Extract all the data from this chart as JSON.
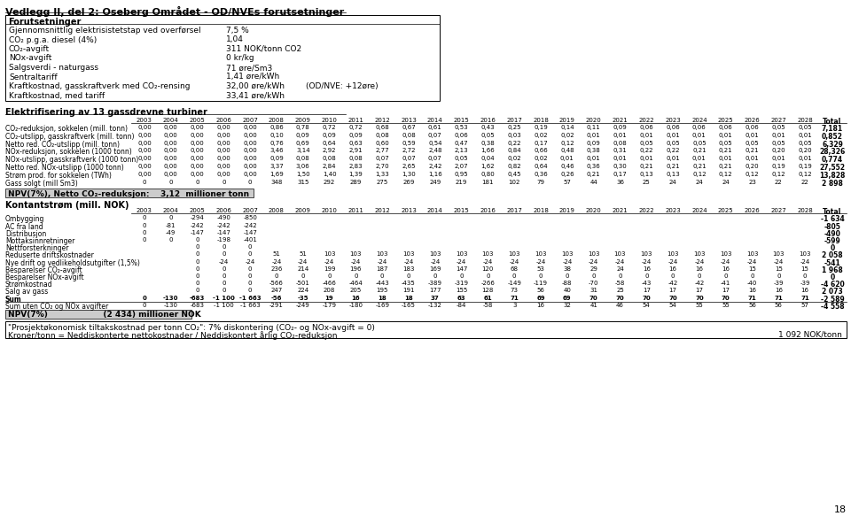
{
  "title": "Vedlegg II, del 2: Oseberg Området - OD/NVEs forutsetninger",
  "forutsetninger_title": "Forutsetninger",
  "forutsetninger_rows": [
    [
      "Gjennomsnittlig elektrisistetstap ved overførsel",
      "7,5 %",
      ""
    ],
    [
      "CO₂ p.g.a. diesel (4%)",
      "1,04",
      ""
    ],
    [
      "CO₂-avgift",
      "311 NOK/tonn CO2",
      ""
    ],
    [
      "NOx-avgift",
      "0 kr/kg",
      ""
    ],
    [
      "Salgsverdi - naturgass",
      "71 øre/Sm3",
      ""
    ],
    [
      "Sentraltariff",
      "1,41 øre/kWh",
      ""
    ],
    [
      "Kraftkostnad, gasskraftverk med CO₂-rensing",
      "32,00 øre/kWh",
      "(OD/NVE: +12øre)"
    ],
    [
      "Kraftkostnad, med tariff",
      "33,41 øre/kWh",
      ""
    ]
  ],
  "elektrifisering_title": "Elektrifisering av 13 gassdrevne turbiner",
  "years": [
    "2003",
    "2004",
    "2005",
    "2006",
    "2007",
    "2008",
    "2009",
    "2010",
    "2011",
    "2012",
    "2013",
    "2014",
    "2015",
    "2016",
    "2017",
    "2018",
    "2019",
    "2020",
    "2021",
    "2022",
    "2023",
    "2024",
    "2025",
    "2026",
    "2027",
    "2028",
    "Total"
  ],
  "elek_rows": [
    [
      "CO₂-reduksjon, sokkelen (mill. tonn)",
      "0,00",
      "0,00",
      "0,00",
      "0,00",
      "0,00",
      "0,86",
      "0,78",
      "0,72",
      "0,72",
      "0,68",
      "0,67",
      "0,61",
      "0,53",
      "0,43",
      "0,25",
      "0,19",
      "0,14",
      "0,11",
      "0,09",
      "0,06",
      "0,06",
      "0,06",
      "0,06",
      "0,06",
      "0,05",
      "0,05",
      "7,181"
    ],
    [
      "CO₂-utslipp, gasskraftverk (mill. tonn)",
      "0,00",
      "0,00",
      "0,00",
      "0,00",
      "0,00",
      "0,10",
      "0,09",
      "0,09",
      "0,09",
      "0,08",
      "0,08",
      "0,07",
      "0,06",
      "0,05",
      "0,03",
      "0,02",
      "0,02",
      "0,01",
      "0,01",
      "0,01",
      "0,01",
      "0,01",
      "0,01",
      "0,01",
      "0,01",
      "0,01",
      "0,852"
    ],
    [
      "Netto red. CO₂-utslipp (mill. tonn)",
      "0,00",
      "0,00",
      "0,00",
      "0,00",
      "0,00",
      "0,76",
      "0,69",
      "0,64",
      "0,63",
      "0,60",
      "0,59",
      "0,54",
      "0,47",
      "0,38",
      "0,22",
      "0,17",
      "0,12",
      "0,09",
      "0,08",
      "0,05",
      "0,05",
      "0,05",
      "0,05",
      "0,05",
      "0,05",
      "0,05",
      "6,329"
    ],
    [
      "NOx-reduksjon, sokkelen (1000 tonn)",
      "0,00",
      "0,00",
      "0,00",
      "0,00",
      "0,00",
      "3,46",
      "3,14",
      "2,92",
      "2,91",
      "2,77",
      "2,72",
      "2,48",
      "2,13",
      "1,66",
      "0,84",
      "0,66",
      "0,48",
      "0,38",
      "0,31",
      "0,22",
      "0,22",
      "0,21",
      "0,21",
      "0,21",
      "0,20",
      "0,20",
      "28,326"
    ],
    [
      "NOx-utslipp, gasskraftverk (1000 tonn)",
      "0,00",
      "0,00",
      "0,00",
      "0,00",
      "0,00",
      "0,09",
      "0,08",
      "0,08",
      "0,08",
      "0,07",
      "0,07",
      "0,07",
      "0,05",
      "0,04",
      "0,02",
      "0,02",
      "0,01",
      "0,01",
      "0,01",
      "0,01",
      "0,01",
      "0,01",
      "0,01",
      "0,01",
      "0,01",
      "0,01",
      "0,774"
    ],
    [
      "Netto red. NOx-utslipp (1000 tonn)",
      "0,00",
      "0,00",
      "0,00",
      "0,00",
      "0,00",
      "3,37",
      "3,06",
      "2,84",
      "2,83",
      "2,70",
      "2,65",
      "2,42",
      "2,07",
      "1,62",
      "0,82",
      "0,64",
      "0,46",
      "0,36",
      "0,30",
      "0,21",
      "0,21",
      "0,21",
      "0,21",
      "0,20",
      "0,19",
      "0,19",
      "27,552"
    ],
    [
      "Strøm prod. for sokkelen (TWh)",
      "0,00",
      "0,00",
      "0,00",
      "0,00",
      "0,00",
      "1,69",
      "1,50",
      "1,40",
      "1,39",
      "1,33",
      "1,30",
      "1,16",
      "0,95",
      "0,80",
      "0,45",
      "0,36",
      "0,26",
      "0,21",
      "0,17",
      "0,13",
      "0,13",
      "0,12",
      "0,12",
      "0,12",
      "0,12",
      "0,12",
      "13,828"
    ],
    [
      "Gass solgt (mill Sm3)",
      "0",
      "0",
      "0",
      "0",
      "0",
      "348",
      "315",
      "292",
      "289",
      "275",
      "269",
      "249",
      "219",
      "181",
      "102",
      "79",
      "57",
      "44",
      "36",
      "25",
      "24",
      "24",
      "24",
      "23",
      "22",
      "22",
      "2 898"
    ]
  ],
  "npv_elek_label": "NPV(7%), Netto CO₂-reduksjon:",
  "npv_elek_value": "3,12  millioner tonn",
  "kontantstr_title": "Kontantstrøm (mill. NOK)",
  "kont_rows": [
    [
      "Ombygging",
      "0",
      "0",
      "-294",
      "-490",
      "-850",
      "",
      "",
      "",
      "",
      "",
      "",
      "",
      "",
      "",
      "",
      "",
      "",
      "",
      "",
      "",
      "",
      "",
      "",
      "",
      "",
      "",
      "-1 634"
    ],
    [
      "AC fra land",
      "0",
      "-81",
      "-242",
      "-242",
      "-242",
      "",
      "",
      "",
      "",
      "",
      "",
      "",
      "",
      "",
      "",
      "",
      "",
      "",
      "",
      "",
      "",
      "",
      "",
      "",
      "",
      "",
      "-805"
    ],
    [
      "Distribusjon",
      "0",
      "-49",
      "-147",
      "-147",
      "-147",
      "",
      "",
      "",
      "",
      "",
      "",
      "",
      "",
      "",
      "",
      "",
      "",
      "",
      "",
      "",
      "",
      "",
      "",
      "",
      "",
      "",
      "-490"
    ],
    [
      "Mottaksinnretninger",
      "0",
      "0",
      "0",
      "-198",
      "-401",
      "",
      "",
      "",
      "",
      "",
      "",
      "",
      "",
      "",
      "",
      "",
      "",
      "",
      "",
      "",
      "",
      "",
      "",
      "",
      "",
      "",
      "-599"
    ],
    [
      "Nettforsterkninger",
      "",
      "",
      "0",
      "0",
      "0",
      "",
      "",
      "",
      "",
      "",
      "",
      "",
      "",
      "",
      "",
      "",
      "",
      "",
      "",
      "",
      "",
      "",
      "",
      "",
      "",
      "",
      "0"
    ],
    [
      "Reduserte driftskostnader",
      "",
      "",
      "0",
      "0",
      "0",
      "51",
      "51",
      "103",
      "103",
      "103",
      "103",
      "103",
      "103",
      "103",
      "103",
      "103",
      "103",
      "103",
      "103",
      "103",
      "103",
      "103",
      "103",
      "103",
      "103",
      "103",
      "2 058"
    ],
    [
      "Nye drift og vedlikeholdsutgifter (1,5%)",
      "",
      "",
      "0",
      "-24",
      "-24",
      "-24",
      "-24",
      "-24",
      "-24",
      "-24",
      "-24",
      "-24",
      "-24",
      "-24",
      "-24",
      "-24",
      "-24",
      "-24",
      "-24",
      "-24",
      "-24",
      "-24",
      "-24",
      "-24",
      "-24",
      "-24",
      "-541"
    ],
    [
      "Besparelser CO₂-avgift",
      "",
      "",
      "0",
      "0",
      "0",
      "236",
      "214",
      "199",
      "196",
      "187",
      "183",
      "169",
      "147",
      "120",
      "68",
      "53",
      "38",
      "29",
      "24",
      "16",
      "16",
      "16",
      "16",
      "15",
      "15",
      "15",
      "1 968"
    ],
    [
      "Besparelser NOx-avgift",
      "",
      "",
      "0",
      "0",
      "0",
      "0",
      "0",
      "0",
      "0",
      "0",
      "0",
      "0",
      "0",
      "0",
      "0",
      "0",
      "0",
      "0",
      "0",
      "0",
      "0",
      "0",
      "0",
      "0",
      "0",
      "0",
      "0"
    ],
    [
      "Strømkostnad",
      "",
      "",
      "0",
      "0",
      "0",
      "-566",
      "-501",
      "-466",
      "-464",
      "-443",
      "-435",
      "-389",
      "-319",
      "-266",
      "-149",
      "-119",
      "-88",
      "-70",
      "-58",
      "-43",
      "-42",
      "-42",
      "-41",
      "-40",
      "-39",
      "-39",
      "-4 620"
    ],
    [
      "Salg av gass",
      "",
      "",
      "0",
      "0",
      "0",
      "247",
      "224",
      "208",
      "205",
      "195",
      "191",
      "177",
      "155",
      "128",
      "73",
      "56",
      "40",
      "31",
      "25",
      "17",
      "17",
      "17",
      "17",
      "16",
      "16",
      "16",
      "2 073"
    ],
    [
      "Sum",
      "0",
      "-130",
      "-683",
      "-1 100",
      "-1 663",
      "-56",
      "-35",
      "19",
      "16",
      "18",
      "18",
      "37",
      "63",
      "61",
      "71",
      "69",
      "69",
      "70",
      "70",
      "70",
      "70",
      "70",
      "70",
      "71",
      "71",
      "71",
      "-2 589"
    ]
  ],
  "sum_uten": [
    "Sum uten CO₂ og NOx avgifter",
    "0",
    "-130",
    "-683",
    "-1 100",
    "-1 663",
    "-291",
    "-249",
    "-179",
    "-180",
    "-169",
    "-165",
    "-132",
    "-84",
    "-58",
    "3",
    "16",
    "32",
    "41",
    "46",
    "54",
    "54",
    "55",
    "55",
    "56",
    "56",
    "57",
    "-4 558"
  ],
  "npv_kont_label": "NPV(7%)",
  "npv_kont_value": "(2 434) millioner NOK",
  "prosjekt_line1": "\"Prosjektøkonomisk tiltakskostnad per tonn CO₂\": 7% diskontering (CO₂- og NOx-avgift = 0)",
  "prosjekt_line2_left": "Kroner/tonn = Neddiskonterte nettokostnader / Neddiskontert årlig CO₂-reduksjon",
  "prosjekt_line2_right": "1 092 NOK/tonn",
  "page_number": "18"
}
